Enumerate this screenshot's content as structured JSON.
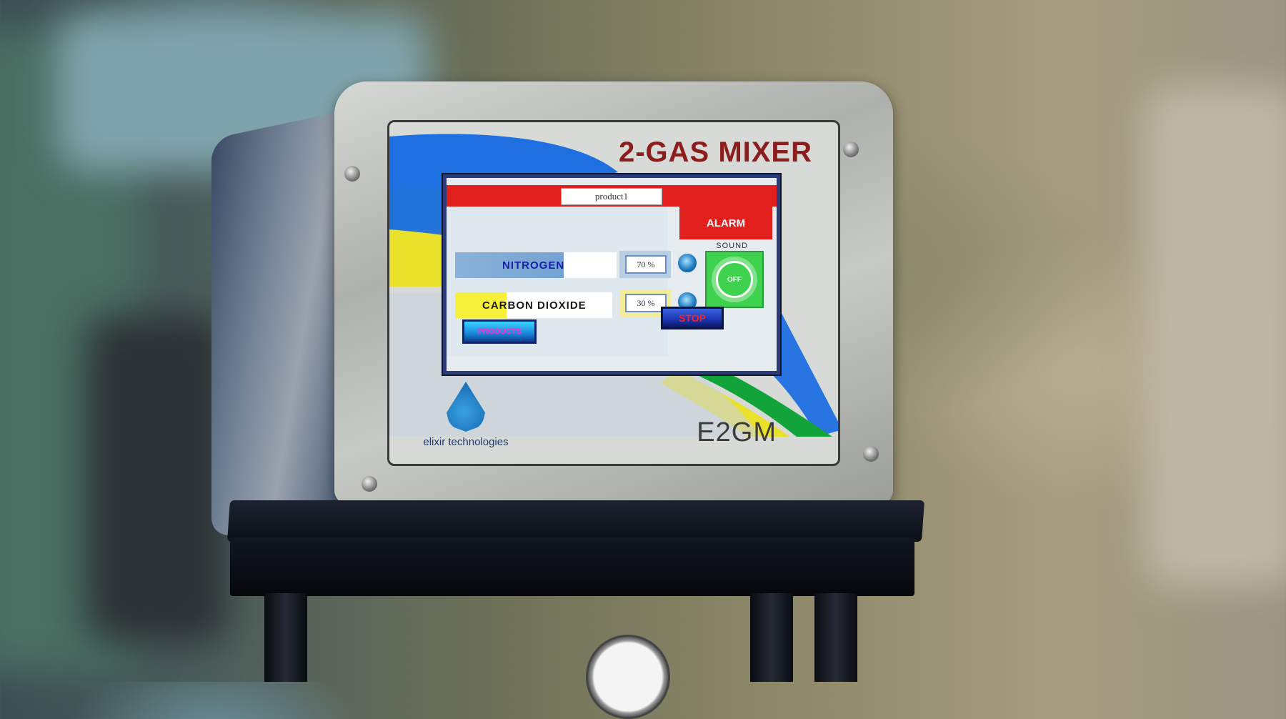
{
  "panel": {
    "title": "2-GAS MIXER",
    "model": "E2GM",
    "brand": "elixir technologies"
  },
  "lcd": {
    "product_name": "product1",
    "alarm_label": "ALARM",
    "sound_label": "SOUND",
    "sound_state": "OFF",
    "gases": [
      {
        "name": "NITROGEN",
        "percent": "70 %"
      },
      {
        "name": "CARBON DIOXIDE",
        "percent": "30 %"
      }
    ],
    "products_button": "PRODUCTS",
    "stop_button": "STOP"
  },
  "colors": {
    "header_red": "#e1201d",
    "sound_green": "#3fd24e",
    "nitrogen_blue": "#1a1fa8",
    "co2_yellow": "#f6f03a",
    "title_red": "#8c1d1d"
  }
}
